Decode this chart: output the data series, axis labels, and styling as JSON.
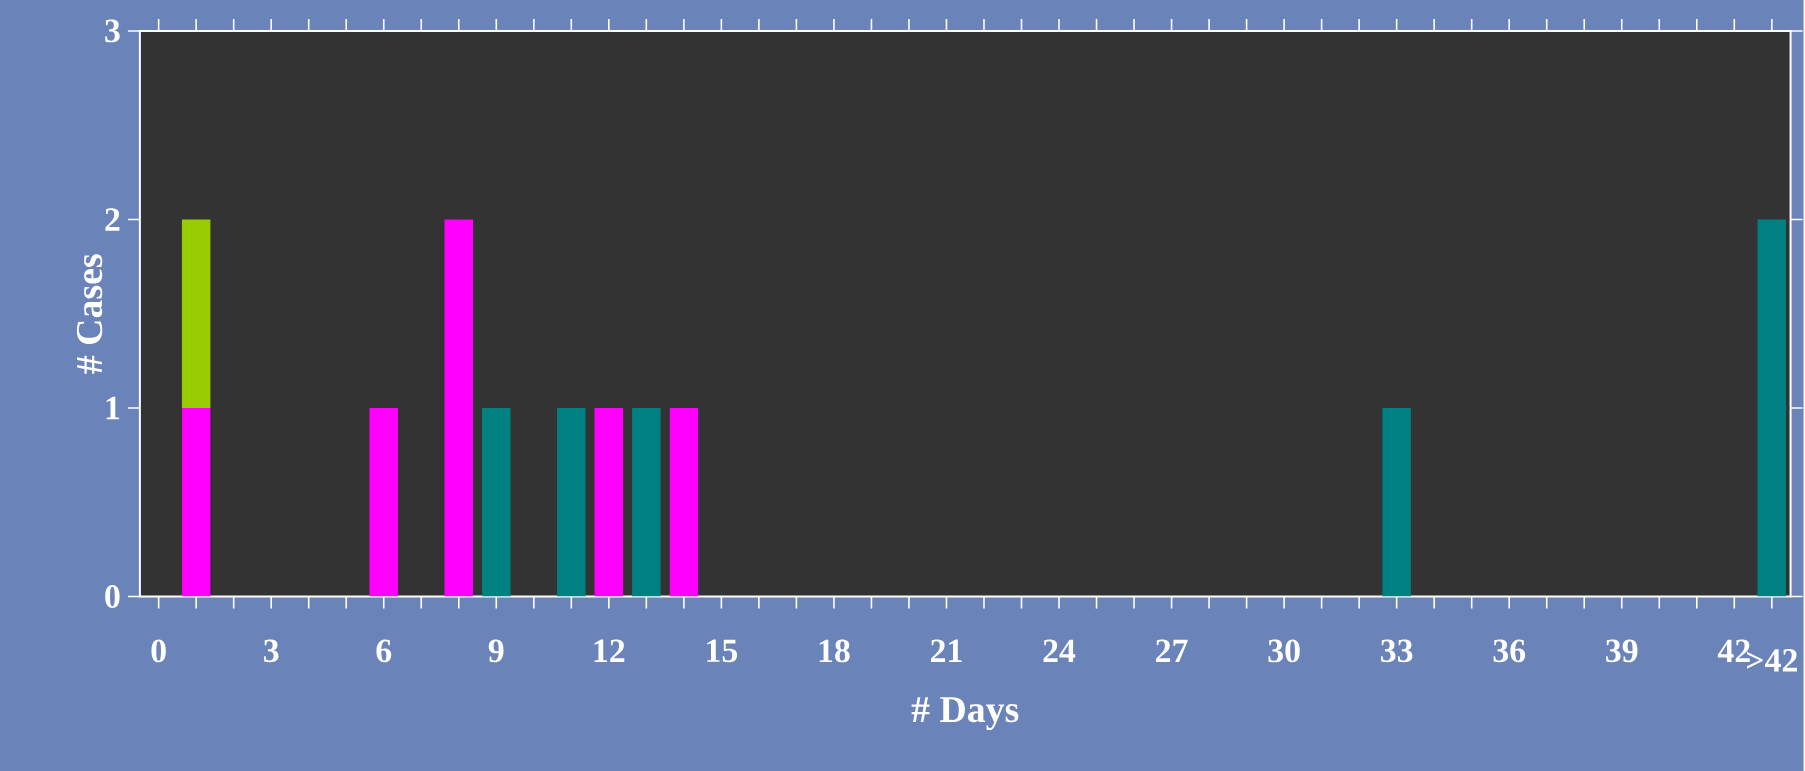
{
  "chart_data": {
    "type": "bar",
    "xlabel": "# Days",
    "ylabel": "# Cases",
    "stacked": true,
    "categories": [
      "0",
      null,
      null,
      "3",
      null,
      null,
      "6",
      null,
      null,
      "9",
      null,
      null,
      "12",
      null,
      null,
      "15",
      null,
      null,
      "18",
      null,
      null,
      "21",
      null,
      null,
      "24",
      null,
      null,
      "27",
      null,
      null,
      "30",
      null,
      null,
      "33",
      null,
      null,
      "36",
      null,
      null,
      "39",
      null,
      null,
      "42",
      ">42"
    ],
    "series": [
      {
        "color": "#ff00ff",
        "values": [
          null,
          1,
          null,
          null,
          null,
          null,
          1,
          null,
          2,
          null,
          null,
          null,
          1,
          null,
          1,
          null,
          null,
          null,
          null,
          null,
          null,
          null,
          null,
          null,
          null,
          null,
          null,
          null,
          null,
          null,
          null,
          null,
          null,
          null,
          null,
          null,
          null,
          null,
          null,
          null,
          null,
          null,
          null,
          null
        ]
      },
      {
        "color": "#99cc00",
        "values": [
          null,
          1,
          null,
          null,
          null,
          null,
          null,
          null,
          null,
          null,
          null,
          null,
          null,
          null,
          null,
          null,
          null,
          null,
          null,
          null,
          null,
          null,
          null,
          null,
          null,
          null,
          null,
          null,
          null,
          null,
          null,
          null,
          null,
          null,
          null,
          null,
          null,
          null,
          null,
          null,
          null,
          null,
          null,
          null
        ]
      },
      {
        "color": "#008080",
        "values": [
          null,
          null,
          null,
          null,
          null,
          null,
          null,
          null,
          null,
          1,
          null,
          1,
          null,
          1,
          null,
          null,
          null,
          null,
          null,
          null,
          null,
          null,
          null,
          null,
          null,
          null,
          null,
          null,
          null,
          null,
          null,
          null,
          null,
          1,
          null,
          null,
          null,
          null,
          null,
          null,
          null,
          null,
          null,
          2
        ]
      }
    ],
    "ylim": [
      0,
      3
    ],
    "yticks": [
      0,
      1,
      2,
      3
    ]
  }
}
